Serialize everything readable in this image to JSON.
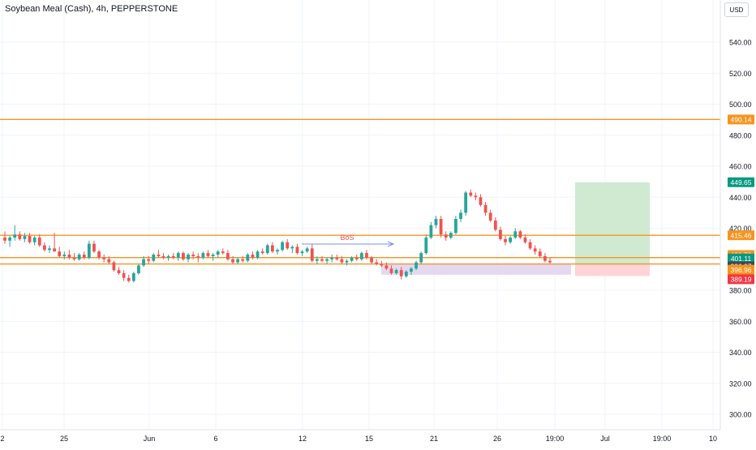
{
  "header": {
    "title": "Soybean Meal (Cash), 4h, PEPPERSTONE",
    "currency_label": "USD"
  },
  "colors": {
    "up": "#26a69a",
    "down": "#ef5350",
    "level_line": "#f7941d",
    "grid": "#f0f3fa",
    "target_zone": "#c8e6c9",
    "stop_zone": "#ffcdd2",
    "demand_zone": "#e1d5f0",
    "bos_arrow": "#7b8ff0",
    "bos_text": "#ef5350"
  },
  "chart_data": {
    "type": "candlestick",
    "y_axis": {
      "min": 290,
      "max": 560,
      "ticks": [
        540,
        520,
        500,
        480,
        460,
        440,
        420,
        400,
        380,
        360,
        340,
        320,
        300
      ],
      "tick_labels": [
        "540.00",
        "520.00",
        "500.00",
        "480.00",
        "460.00",
        "440.00",
        "420.00",
        "400.00",
        "380.00",
        "360.00",
        "340.00",
        "320.00",
        "300.00"
      ],
      "position": "right"
    },
    "x_axis": {
      "tick_labels": [
        "2",
        "25",
        "Jun",
        "6",
        "12",
        "15",
        "21",
        "26",
        "19:00",
        "Jul",
        "19:00",
        "10"
      ]
    },
    "horizontal_levels": [
      490.14,
      415.46,
      401.1,
      396.97
    ],
    "price_labels": [
      {
        "value": 490.14,
        "label": "490.14",
        "color": "#f7941d"
      },
      {
        "value": 449.65,
        "label": "449.65",
        "color": "#089981"
      },
      {
        "value": 415.46,
        "label": "415.46",
        "color": "#f7941d"
      },
      {
        "value": 401.7,
        "label": "401.70",
        "color": "#f7941d"
      },
      {
        "value": 401.11,
        "label": "401.11",
        "color": "#089981"
      },
      {
        "value": 396.97,
        "label": "396.97",
        "color": "#434651"
      },
      {
        "value": 396.96,
        "label": "396.96",
        "color": "#f7941d"
      },
      {
        "value": 389.19,
        "label": "389.19",
        "color": "#f23645"
      }
    ],
    "annotation": {
      "text": "BoS"
    },
    "position_tool": {
      "entry": 396.97,
      "target": 449.65,
      "stop": 389.19
    },
    "demand_zone": {
      "top": 396.97,
      "bottom": 390.0
    },
    "candles": [
      {
        "o": 414,
        "h": 418,
        "l": 410,
        "c": 412
      },
      {
        "o": 412,
        "h": 415,
        "l": 408,
        "c": 414
      },
      {
        "o": 414,
        "h": 422,
        "l": 412,
        "c": 416
      },
      {
        "o": 416,
        "h": 418,
        "l": 412,
        "c": 413
      },
      {
        "o": 413,
        "h": 417,
        "l": 411,
        "c": 415
      },
      {
        "o": 415,
        "h": 417,
        "l": 410,
        "c": 411
      },
      {
        "o": 411,
        "h": 415,
        "l": 409,
        "c": 414
      },
      {
        "o": 414,
        "h": 416,
        "l": 408,
        "c": 409
      },
      {
        "o": 409,
        "h": 411,
        "l": 405,
        "c": 406
      },
      {
        "o": 406,
        "h": 409,
        "l": 404,
        "c": 407
      },
      {
        "o": 407,
        "h": 417,
        "l": 405,
        "c": 405
      },
      {
        "o": 405,
        "h": 408,
        "l": 401,
        "c": 402
      },
      {
        "o": 402,
        "h": 405,
        "l": 400,
        "c": 403
      },
      {
        "o": 403,
        "h": 406,
        "l": 400,
        "c": 401
      },
      {
        "o": 401,
        "h": 404,
        "l": 399,
        "c": 400
      },
      {
        "o": 400,
        "h": 404,
        "l": 399,
        "c": 403
      },
      {
        "o": 403,
        "h": 405,
        "l": 400,
        "c": 401
      },
      {
        "o": 401,
        "h": 412,
        "l": 400,
        "c": 410
      },
      {
        "o": 410,
        "h": 412,
        "l": 404,
        "c": 405
      },
      {
        "o": 405,
        "h": 406,
        "l": 400,
        "c": 401
      },
      {
        "o": 401,
        "h": 403,
        "l": 398,
        "c": 400
      },
      {
        "o": 400,
        "h": 402,
        "l": 397,
        "c": 398
      },
      {
        "o": 398,
        "h": 399,
        "l": 392,
        "c": 393
      },
      {
        "o": 393,
        "h": 395,
        "l": 390,
        "c": 391
      },
      {
        "o": 391,
        "h": 393,
        "l": 386,
        "c": 388
      },
      {
        "o": 388,
        "h": 390,
        "l": 385,
        "c": 386
      },
      {
        "o": 386,
        "h": 392,
        "l": 385,
        "c": 391
      },
      {
        "o": 391,
        "h": 397,
        "l": 390,
        "c": 396
      },
      {
        "o": 396,
        "h": 402,
        "l": 395,
        "c": 400
      },
      {
        "o": 400,
        "h": 402,
        "l": 397,
        "c": 399
      },
      {
        "o": 399,
        "h": 404,
        "l": 398,
        "c": 403
      },
      {
        "o": 403,
        "h": 406,
        "l": 401,
        "c": 402
      },
      {
        "o": 402,
        "h": 404,
        "l": 400,
        "c": 401
      },
      {
        "o": 401,
        "h": 403,
        "l": 399,
        "c": 402
      },
      {
        "o": 402,
        "h": 404,
        "l": 400,
        "c": 401
      },
      {
        "o": 401,
        "h": 405,
        "l": 399,
        "c": 404
      },
      {
        "o": 404,
        "h": 405,
        "l": 399,
        "c": 400
      },
      {
        "o": 400,
        "h": 404,
        "l": 398,
        "c": 403
      },
      {
        "o": 403,
        "h": 405,
        "l": 400,
        "c": 402
      },
      {
        "o": 402,
        "h": 404,
        "l": 398,
        "c": 401
      },
      {
        "o": 401,
        "h": 405,
        "l": 400,
        "c": 404
      },
      {
        "o": 404,
        "h": 406,
        "l": 401,
        "c": 402
      },
      {
        "o": 402,
        "h": 404,
        "l": 399,
        "c": 403
      },
      {
        "o": 403,
        "h": 406,
        "l": 401,
        "c": 405
      },
      {
        "o": 405,
        "h": 407,
        "l": 403,
        "c": 404
      },
      {
        "o": 404,
        "h": 406,
        "l": 399,
        "c": 400
      },
      {
        "o": 400,
        "h": 402,
        "l": 397,
        "c": 398
      },
      {
        "o": 398,
        "h": 401,
        "l": 397,
        "c": 400
      },
      {
        "o": 400,
        "h": 402,
        "l": 398,
        "c": 399
      },
      {
        "o": 399,
        "h": 404,
        "l": 398,
        "c": 403
      },
      {
        "o": 403,
        "h": 405,
        "l": 400,
        "c": 401
      },
      {
        "o": 401,
        "h": 406,
        "l": 400,
        "c": 405
      },
      {
        "o": 405,
        "h": 407,
        "l": 403,
        "c": 404
      },
      {
        "o": 404,
        "h": 410,
        "l": 403,
        "c": 409
      },
      {
        "o": 409,
        "h": 411,
        "l": 404,
        "c": 405
      },
      {
        "o": 405,
        "h": 407,
        "l": 403,
        "c": 406
      },
      {
        "o": 406,
        "h": 412,
        "l": 405,
        "c": 411
      },
      {
        "o": 411,
        "h": 413,
        "l": 406,
        "c": 407
      },
      {
        "o": 407,
        "h": 409,
        "l": 404,
        "c": 408
      },
      {
        "o": 408,
        "h": 410,
        "l": 403,
        "c": 404
      },
      {
        "o": 404,
        "h": 406,
        "l": 402,
        "c": 405
      },
      {
        "o": 405,
        "h": 408,
        "l": 404,
        "c": 407
      },
      {
        "o": 407,
        "h": 410,
        "l": 398,
        "c": 399
      },
      {
        "o": 399,
        "h": 402,
        "l": 397,
        "c": 400
      },
      {
        "o": 400,
        "h": 402,
        "l": 398,
        "c": 399
      },
      {
        "o": 399,
        "h": 401,
        "l": 397,
        "c": 400
      },
      {
        "o": 400,
        "h": 403,
        "l": 398,
        "c": 401
      },
      {
        "o": 401,
        "h": 403,
        "l": 399,
        "c": 400
      },
      {
        "o": 400,
        "h": 402,
        "l": 397,
        "c": 398
      },
      {
        "o": 398,
        "h": 400,
        "l": 396,
        "c": 399
      },
      {
        "o": 399,
        "h": 402,
        "l": 398,
        "c": 401
      },
      {
        "o": 401,
        "h": 403,
        "l": 399,
        "c": 400
      },
      {
        "o": 400,
        "h": 405,
        "l": 399,
        "c": 404
      },
      {
        "o": 404,
        "h": 406,
        "l": 400,
        "c": 401
      },
      {
        "o": 401,
        "h": 402,
        "l": 397,
        "c": 398
      },
      {
        "o": 398,
        "h": 400,
        "l": 396,
        "c": 397
      },
      {
        "o": 397,
        "h": 399,
        "l": 395,
        "c": 396
      },
      {
        "o": 396,
        "h": 398,
        "l": 393,
        "c": 394
      },
      {
        "o": 394,
        "h": 396,
        "l": 390,
        "c": 391
      },
      {
        "o": 391,
        "h": 394,
        "l": 390,
        "c": 393
      },
      {
        "o": 393,
        "h": 395,
        "l": 387,
        "c": 389
      },
      {
        "o": 389,
        "h": 393,
        "l": 388,
        "c": 392
      },
      {
        "o": 392,
        "h": 395,
        "l": 390,
        "c": 394
      },
      {
        "o": 394,
        "h": 399,
        "l": 393,
        "c": 398
      },
      {
        "o": 398,
        "h": 405,
        "l": 397,
        "c": 404
      },
      {
        "o": 404,
        "h": 416,
        "l": 403,
        "c": 414
      },
      {
        "o": 414,
        "h": 424,
        "l": 413,
        "c": 422
      },
      {
        "o": 422,
        "h": 428,
        "l": 420,
        "c": 426
      },
      {
        "o": 426,
        "h": 428,
        "l": 414,
        "c": 416
      },
      {
        "o": 416,
        "h": 418,
        "l": 412,
        "c": 414
      },
      {
        "o": 414,
        "h": 418,
        "l": 413,
        "c": 417
      },
      {
        "o": 417,
        "h": 428,
        "l": 416,
        "c": 426
      },
      {
        "o": 426,
        "h": 432,
        "l": 424,
        "c": 430
      },
      {
        "o": 430,
        "h": 444,
        "l": 428,
        "c": 443
      },
      {
        "o": 443,
        "h": 445,
        "l": 440,
        "c": 441
      },
      {
        "o": 441,
        "h": 443,
        "l": 438,
        "c": 440
      },
      {
        "o": 440,
        "h": 442,
        "l": 434,
        "c": 435
      },
      {
        "o": 435,
        "h": 437,
        "l": 428,
        "c": 430
      },
      {
        "o": 430,
        "h": 432,
        "l": 424,
        "c": 425
      },
      {
        "o": 425,
        "h": 427,
        "l": 418,
        "c": 419
      },
      {
        "o": 419,
        "h": 421,
        "l": 412,
        "c": 413
      },
      {
        "o": 413,
        "h": 415,
        "l": 409,
        "c": 411
      },
      {
        "o": 411,
        "h": 415,
        "l": 410,
        "c": 414
      },
      {
        "o": 414,
        "h": 420,
        "l": 413,
        "c": 418
      },
      {
        "o": 418,
        "h": 419,
        "l": 413,
        "c": 414
      },
      {
        "o": 414,
        "h": 416,
        "l": 410,
        "c": 411
      },
      {
        "o": 411,
        "h": 413,
        "l": 406,
        "c": 407
      },
      {
        "o": 407,
        "h": 409,
        "l": 403,
        "c": 405
      },
      {
        "o": 405,
        "h": 407,
        "l": 401,
        "c": 402
      },
      {
        "o": 402,
        "h": 404,
        "l": 398,
        "c": 399
      },
      {
        "o": 399,
        "h": 401,
        "l": 397,
        "c": 398
      }
    ]
  }
}
